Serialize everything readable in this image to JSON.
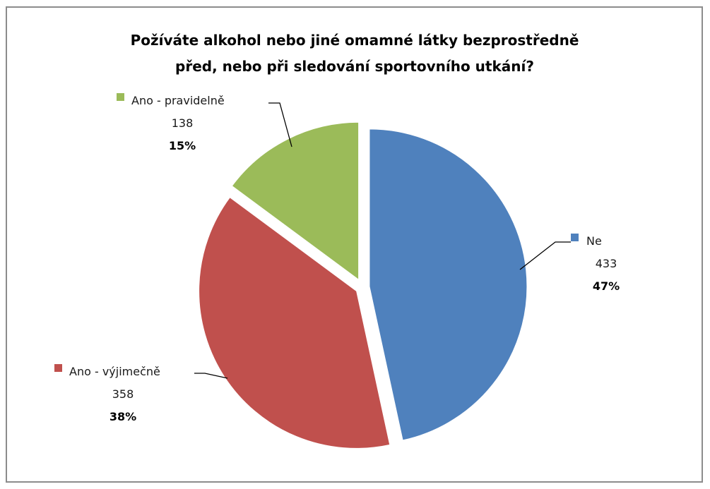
{
  "chart_data": {
    "type": "pie",
    "title": "Požíváte alkohol nebo jiné omamné látky bezprostředně",
    "title_line2": "před, nebo při sledování sportovního utkání?",
    "start": "12 o'clock, clockwise",
    "slices": [
      {
        "label": "Ne",
        "value": 433,
        "percent": "47%",
        "color": "#4f81bd"
      },
      {
        "label": "Ano - výjimečně",
        "value": 358,
        "percent": "38%",
        "color": "#c0504d"
      },
      {
        "label": "Ano - pravidelně",
        "value": 138,
        "percent": "15%",
        "color": "#9bbb59"
      }
    ]
  }
}
